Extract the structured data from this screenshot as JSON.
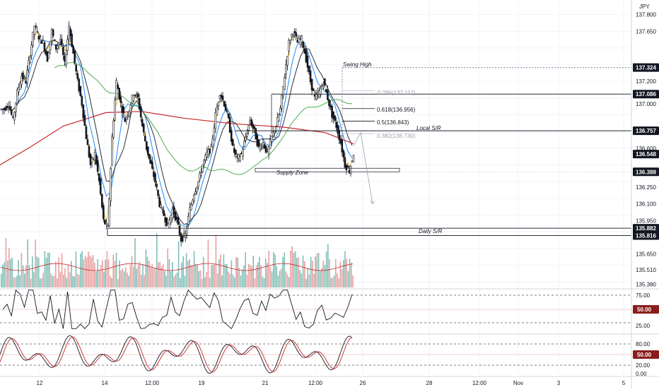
{
  "currency": "JPY",
  "colors": {
    "bg": "#ffffff",
    "grid": "#f0f3fa",
    "candle": "#131722",
    "axis_text": "#131722",
    "ma_fast": "#f2c744",
    "ma_mid": "#1e8bff",
    "ma_slow": "#2a2e39",
    "ma_green": "#4caf50",
    "ma_red": "#c62828",
    "vol_up": "#7fbfb8",
    "vol_down": "#e8a0a0",
    "level_line": "#2a2e39",
    "tag_dark": "#131722",
    "tag_red": "#8b1d1d"
  },
  "price_axis": {
    "labels": [
      "137.800",
      "137.650",
      "137.324",
      "137.200",
      "137.086",
      "137.000",
      "136.757",
      "136.600",
      "136.548",
      "136.388",
      "136.250",
      "136.100",
      "135.950",
      "135.882",
      "135.816",
      "135.650",
      "135.510",
      "135.380"
    ],
    "current_price": "136.548"
  },
  "time_axis": {
    "labels": [
      "12",
      "14",
      "12:00",
      "19",
      "21",
      "12:00",
      "26",
      "28",
      "12:00",
      "Nov",
      "3",
      "5"
    ]
  },
  "annotations": {
    "swing_high": "Swing High",
    "fib_0786": "0.786(137.117)",
    "fib_0618": "0.618(136.956)",
    "fib_05": "0.5(136.843)",
    "fib_0382": "0.382(136.730)",
    "local_sr": "Local S/R",
    "supply_zone": "Supply Zone",
    "daily_sr": "Daily S/R"
  },
  "level_tags": [
    {
      "price": "137.324",
      "style": "dark"
    },
    {
      "price": "137.086",
      "style": "dark"
    },
    {
      "price": "136.757",
      "style": "dark"
    },
    {
      "price": "136.548",
      "style": "dark"
    },
    {
      "price": "136.388",
      "style": "dark"
    },
    {
      "price": "135.882",
      "style": "dark"
    },
    {
      "price": "135.816",
      "style": "dark"
    }
  ],
  "rsi_panel": {
    "labels": [
      "75.00",
      "50.00",
      "25.00"
    ],
    "tag": "50.00"
  },
  "stoch_panel": {
    "labels": [
      "80.00",
      "50.00",
      "20.00",
      "0.00"
    ],
    "tag": "50.00"
  },
  "chart_data": {
    "type": "candlestick",
    "symbol_currency": "JPY",
    "ylim": [
      135.35,
      137.88
    ],
    "key_levels": [
      {
        "name": "Swing High",
        "price": 137.324
      },
      {
        "name": "0.786",
        "price": 137.117
      },
      {
        "name": "0.618",
        "price": 136.956
      },
      {
        "name": "0.5",
        "price": 136.843
      },
      {
        "name": "0.382",
        "price": 136.73
      },
      {
        "name": "Local S/R",
        "price": 136.757
      },
      {
        "name": "Supply Zone",
        "price": 136.388
      },
      {
        "name": "Daily S/R",
        "price": 135.882
      },
      {
        "name": "Daily S/R low",
        "price": 135.816
      }
    ],
    "close_path": [
      136.95,
      137.0,
      136.85,
      137.1,
      137.25,
      137.2,
      137.45,
      137.7,
      137.6,
      137.55,
      137.4,
      137.65,
      137.5,
      137.58,
      137.35,
      137.7,
      137.45,
      137.2,
      137.0,
      136.7,
      136.45,
      136.55,
      136.3,
      135.95,
      135.88,
      136.7,
      137.2,
      137.0,
      136.85,
      136.95,
      137.1,
      137.05,
      136.8,
      136.6,
      136.45,
      136.3,
      136.1,
      136.0,
      135.9,
      136.05,
      135.95,
      135.78,
      135.82,
      136.05,
      136.2,
      136.3,
      136.45,
      136.55,
      136.6,
      136.9,
      137.1,
      137.0,
      136.85,
      136.6,
      136.5,
      136.55,
      136.7,
      136.85,
      136.75,
      136.6,
      136.65,
      136.55,
      136.7,
      136.8,
      136.95,
      137.25,
      137.55,
      137.65,
      137.55,
      137.58,
      137.4,
      137.2,
      137.05,
      137.1,
      137.2,
      137.05,
      136.9,
      136.8,
      136.65,
      136.45,
      136.4,
      136.55
    ]
  }
}
